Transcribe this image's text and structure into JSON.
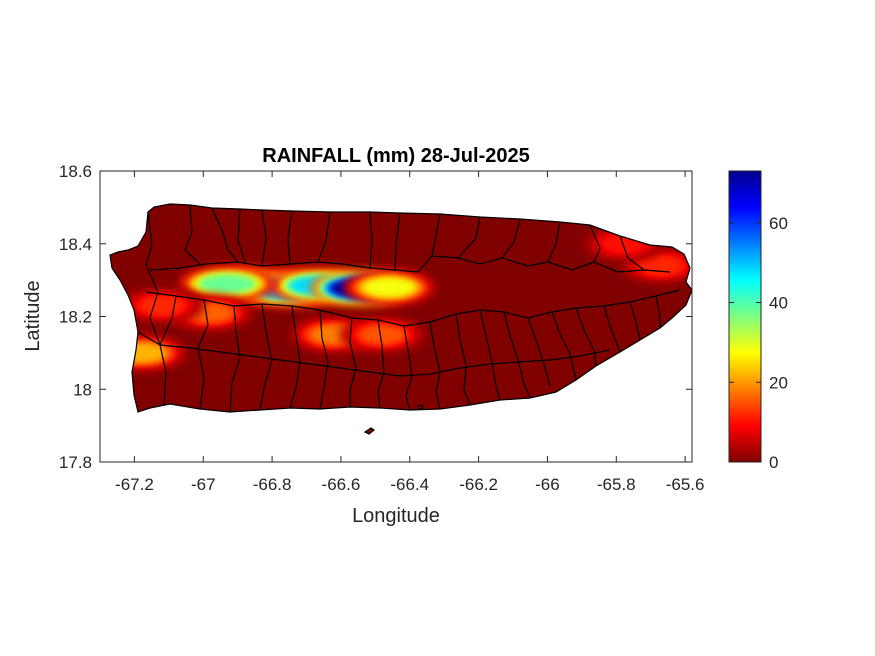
{
  "chart_data": {
    "type": "heatmap",
    "title": "RAINFALL (mm) 28-Jul-2025",
    "xlabel": "Longitude",
    "ylabel": "Latitude",
    "xlim": [
      -67.3,
      -65.58
    ],
    "ylim": [
      17.8,
      18.6
    ],
    "xticks": [
      -67.2,
      -67,
      -66.8,
      -66.6,
      -66.4,
      -66.2,
      -66,
      -65.8,
      -65.6
    ],
    "xtick_labels": [
      "-67.2",
      "-67",
      "-66.8",
      "-66.6",
      "-66.4",
      "-66.2",
      "-66",
      "-65.8",
      "-65.6"
    ],
    "yticks": [
      17.8,
      18,
      18.2,
      18.4,
      18.6
    ],
    "ytick_labels": [
      "17.8",
      "18",
      "18.2",
      "18.4",
      "18.6"
    ],
    "colorbar": {
      "range": [
        0,
        73
      ],
      "ticks": [
        0,
        20,
        40,
        60
      ],
      "tick_labels": [
        "0",
        "20",
        "40",
        "60"
      ],
      "colormap": "jet"
    },
    "background_value_mm": 0,
    "rain_cells": [
      {
        "lon": -66.86,
        "lat": 18.285,
        "value_mm": 45
      },
      {
        "lon": -66.75,
        "lat": 18.275,
        "value_mm": 52
      },
      {
        "lon": -66.66,
        "lat": 18.285,
        "value_mm": 48
      },
      {
        "lon": -66.54,
        "lat": 18.278,
        "value_mm": 72
      },
      {
        "lon": -66.93,
        "lat": 18.29,
        "value_mm": 38
      },
      {
        "lon": -66.46,
        "lat": 18.28,
        "value_mm": 28
      },
      {
        "lon": -67.18,
        "lat": 18.1,
        "value_mm": 22
      },
      {
        "lon": -66.62,
        "lat": 18.15,
        "value_mm": 18
      },
      {
        "lon": -66.48,
        "lat": 18.15,
        "value_mm": 15
      },
      {
        "lon": -65.67,
        "lat": 18.34,
        "value_mm": 12
      },
      {
        "lon": -65.78,
        "lat": 18.4,
        "value_mm": 10
      },
      {
        "lon": -66.98,
        "lat": 18.21,
        "value_mm": 16
      },
      {
        "lon": -67.12,
        "lat": 18.23,
        "value_mm": 12
      }
    ],
    "grid": false,
    "legend": "none"
  },
  "colors": {
    "land_background": "#800000",
    "boundary_lines": "#000000",
    "axes": "#262626"
  }
}
